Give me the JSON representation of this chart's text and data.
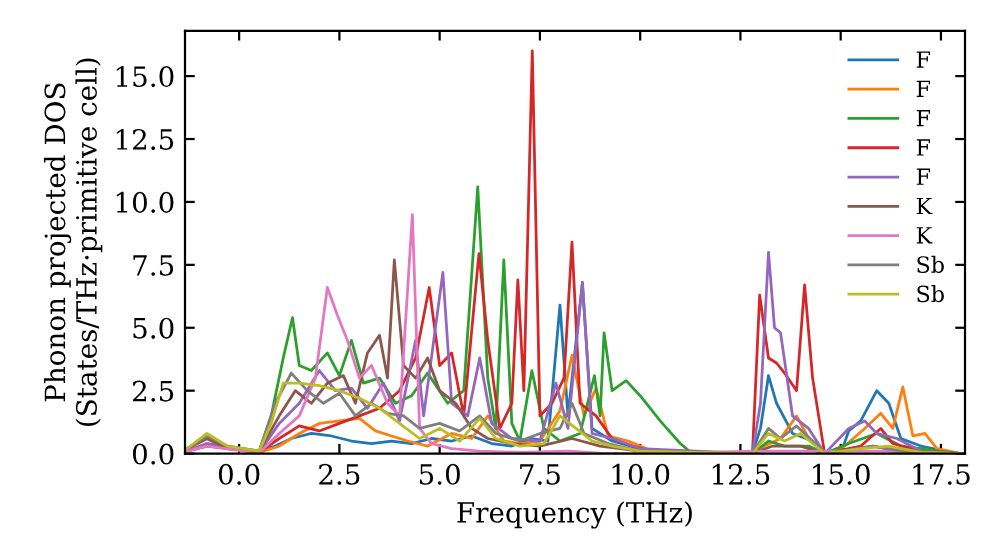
{
  "chart_data": {
    "type": "line",
    "xlabel": "Frequency (THz)",
    "ylabel": "Phonon projected DOS\n(States/THz·primitive cell)",
    "xlim": [
      -1.35,
      18.1
    ],
    "ylim": [
      0,
      16.8
    ],
    "xticks": [
      {
        "value": 0,
        "label": "0.0"
      },
      {
        "value": 2.5,
        "label": "2.5"
      },
      {
        "value": 5,
        "label": "5.0"
      },
      {
        "value": 7.5,
        "label": "7.5"
      },
      {
        "value": 10,
        "label": "10.0"
      },
      {
        "value": 12.5,
        "label": "12.5"
      },
      {
        "value": 15,
        "label": "15.0"
      },
      {
        "value": 17.5,
        "label": "17.5"
      }
    ],
    "yticks": [
      {
        "value": 0,
        "label": "0.0"
      },
      {
        "value": 2.5,
        "label": "2.5"
      },
      {
        "value": 5,
        "label": "5.0"
      },
      {
        "value": 7.5,
        "label": "7.5"
      },
      {
        "value": 10,
        "label": "10.0"
      },
      {
        "value": 12.5,
        "label": "12.5"
      },
      {
        "value": 15,
        "label": "15.0"
      }
    ],
    "grid": false,
    "legend": "top right",
    "marker": "none",
    "line_style": "solid",
    "series": [
      {
        "name": "F",
        "color": "#1f77b4",
        "x": [
          -0.3,
          0.5,
          0.9,
          1.3,
          1.8,
          2.3,
          2.8,
          3.3,
          3.8,
          4.3,
          4.8,
          5.3,
          5.8,
          6.3,
          6.8,
          7.3,
          7.7,
          8.0,
          8.2,
          8.56,
          8.8,
          9.3,
          10,
          10.5,
          12.8,
          13.0,
          13.2,
          13.4,
          13.8,
          14.3,
          14.6,
          15.0,
          15.2,
          15.5,
          15.9,
          16.2,
          16.5,
          17.0,
          17.6,
          18.0
        ],
        "values": [
          0.3,
          0.1,
          0.3,
          0.6,
          0.8,
          0.7,
          0.5,
          0.4,
          0.5,
          0.4,
          0.6,
          0.5,
          0.7,
          0.4,
          0.3,
          0.6,
          0.5,
          5.9,
          1.5,
          6.8,
          1.0,
          0.5,
          0.2,
          0,
          0,
          1.0,
          3.1,
          2.0,
          0.8,
          0.5,
          0,
          0,
          0.9,
          1.3,
          2.5,
          2.0,
          0.6,
          0.3,
          0.1,
          0
        ]
      },
      {
        "name": "F",
        "color": "#ff7f0e",
        "x": [
          -1.3,
          -0.8,
          0.5,
          1.0,
          1.5,
          2.0,
          2.5,
          3.0,
          3.4,
          3.8,
          4.2,
          4.7,
          5.3,
          5.8,
          6.2,
          6.6,
          7.0,
          7.5,
          8.0,
          8.3,
          8.6,
          8.9,
          9.2,
          9.7,
          10.3,
          12.8,
          13.1,
          13.5,
          13.9,
          14.2,
          14.6,
          15.1,
          15.6,
          16.0,
          16.3,
          16.55,
          16.8,
          17.1,
          17.4,
          18
        ],
        "values": [
          0.1,
          0.4,
          0.05,
          0.3,
          0.8,
          1.2,
          1.3,
          1.4,
          0.9,
          0.7,
          0.5,
          0.3,
          0.8,
          0.6,
          1.5,
          0.5,
          0.4,
          0.5,
          1.7,
          3.9,
          1.5,
          2.6,
          0.7,
          0.5,
          0.1,
          0,
          0.3,
          0.6,
          1.5,
          0.6,
          0,
          0.3,
          1.0,
          1.6,
          1.0,
          2.65,
          0.7,
          0.8,
          0.2,
          0
        ]
      },
      {
        "name": "F",
        "color": "#2ca02c",
        "x": [
          -1.3,
          -0.8,
          -0.3,
          0.5,
          0.8,
          1.1,
          1.33,
          1.5,
          1.8,
          2.2,
          2.5,
          2.8,
          3.1,
          3.5,
          3.9,
          4.3,
          4.7,
          5.2,
          5.6,
          5.95,
          6.2,
          6.4,
          6.6,
          6.8,
          7.0,
          7.3,
          7.6,
          8.0,
          8.5,
          8.86,
          9.0,
          9.1,
          9.3,
          9.65,
          10.0,
          10.5,
          11.0,
          11.3,
          12.8,
          13.2,
          13.6,
          14.2,
          14.6,
          15.2,
          15.9,
          16.5,
          18
        ],
        "values": [
          0.2,
          0.6,
          0.2,
          0.1,
          1.5,
          3.8,
          5.4,
          3.5,
          3.3,
          4.0,
          3.1,
          4.5,
          2.8,
          3.0,
          2.0,
          2.3,
          3.2,
          2.0,
          2.5,
          10.6,
          3.0,
          1.0,
          7.7,
          1.2,
          0.5,
          3.3,
          1.0,
          0.5,
          0.8,
          3.1,
          1.5,
          4.8,
          2.5,
          2.9,
          2.3,
          1.3,
          0.4,
          0,
          0,
          0.5,
          0.3,
          0.3,
          0,
          0.4,
          0.8,
          0.3,
          0
        ]
      },
      {
        "name": "F",
        "color": "#d62728",
        "x": [
          -1.3,
          -0.8,
          0.5,
          1.0,
          1.5,
          2.0,
          2.5,
          3.0,
          3.5,
          4.0,
          4.4,
          4.74,
          5.0,
          5.3,
          5.6,
          5.98,
          6.2,
          6.5,
          6.8,
          6.95,
          7.1,
          7.31,
          7.5,
          7.8,
          8.1,
          8.3,
          8.5,
          8.9,
          9.3,
          9.8,
          10.3,
          12.8,
          12.98,
          13.2,
          13.4,
          13.6,
          13.9,
          14.1,
          14.3,
          14.6,
          15.5,
          16.0,
          16.3,
          17,
          18
        ],
        "values": [
          0.1,
          0.3,
          0.05,
          0.6,
          1.1,
          0.9,
          1.2,
          1.5,
          1.8,
          2.5,
          3.8,
          6.6,
          3.5,
          4.0,
          1.5,
          7.95,
          4.5,
          1.0,
          2.0,
          6.9,
          2.5,
          16.0,
          1.5,
          2.0,
          3.0,
          8.4,
          2.0,
          1.5,
          0.6,
          0.3,
          0.1,
          0,
          6.3,
          3.8,
          3.6,
          3.2,
          2.5,
          6.7,
          3.0,
          0,
          0.3,
          1.0,
          0.4,
          0.1,
          0
        ]
      },
      {
        "name": "F",
        "color": "#9467bd",
        "x": [
          -1.3,
          -0.8,
          0.5,
          1.0,
          1.5,
          2.0,
          2.4,
          2.8,
          3.2,
          3.6,
          4.0,
          4.4,
          4.6,
          5.08,
          5.3,
          5.7,
          6.0,
          6.3,
          6.8,
          7.5,
          7.9,
          8.2,
          8.56,
          8.8,
          9.3,
          10,
          12.8,
          13.0,
          13.2,
          13.35,
          13.5,
          13.8,
          14.2,
          14.6,
          15.2,
          15.6,
          15.9,
          16.4,
          17,
          18
        ],
        "values": [
          0.1,
          0.4,
          0.05,
          1.2,
          2.0,
          3.3,
          2.5,
          2.6,
          1.8,
          2.8,
          1.3,
          4.5,
          1.5,
          7.2,
          2.0,
          1.5,
          3.8,
          1.2,
          0.6,
          0.5,
          2.8,
          1.0,
          6.8,
          0.8,
          0.6,
          0.2,
          0,
          2.0,
          8.0,
          5.0,
          4.8,
          1.5,
          1.0,
          0,
          1.0,
          1.3,
          0.8,
          0.6,
          0.1,
          0
        ]
      },
      {
        "name": "K",
        "color": "#8c564b",
        "x": [
          -1.3,
          -0.8,
          -0.3,
          0.5,
          1.0,
          1.4,
          1.8,
          2.2,
          2.6,
          2.9,
          3.2,
          3.5,
          3.7,
          3.87,
          4.1,
          4.4,
          4.7,
          5.0,
          5.4,
          5.8,
          6.2,
          6.8,
          7.5,
          8.3,
          9,
          10,
          12.8,
          13.3,
          14,
          14.6,
          15.8,
          16.5,
          18
        ],
        "values": [
          0.2,
          0.6,
          0.2,
          0.1,
          1.5,
          2.5,
          2.0,
          2.8,
          3.1,
          2.0,
          4.0,
          4.7,
          3.0,
          7.7,
          3.5,
          3.0,
          3.8,
          2.5,
          2.0,
          1.0,
          0.6,
          0.4,
          0.3,
          0.6,
          0.3,
          0.1,
          0,
          0.3,
          0.3,
          0,
          0.3,
          0.1,
          0
        ]
      },
      {
        "name": "K",
        "color": "#e377c2",
        "x": [
          -1.3,
          -0.8,
          0.5,
          1.0,
          1.5,
          1.9,
          2.2,
          2.45,
          2.7,
          3.0,
          3.3,
          3.7,
          4.0,
          4.32,
          4.5,
          4.8,
          5.3,
          6.0,
          7,
          8.2,
          9,
          10,
          13,
          14,
          16,
          18
        ],
        "values": [
          0.1,
          0.3,
          0.02,
          0.8,
          1.5,
          3.0,
          6.6,
          5.5,
          4.5,
          3.0,
          3.5,
          2.0,
          1.5,
          9.5,
          1.0,
          0.4,
          0.2,
          0.1,
          0.05,
          0.1,
          0.02,
          0,
          0.1,
          0.1,
          0.1,
          0
        ]
      },
      {
        "name": "Sb",
        "color": "#7f7f7f",
        "x": [
          -1.3,
          -0.8,
          -0.3,
          0.5,
          0.9,
          1.3,
          1.7,
          2.1,
          2.5,
          2.9,
          3.3,
          3.7,
          4.1,
          4.5,
          5.0,
          5.5,
          6.0,
          6.4,
          7.0,
          7.5,
          8.0,
          8.3,
          8.6,
          9.2,
          10,
          12.8,
          13.2,
          13.5,
          13.9,
          14.3,
          14.6,
          15.8,
          16.5,
          18
        ],
        "values": [
          0.2,
          0.7,
          0.3,
          0.1,
          2.0,
          3.2,
          2.5,
          2.0,
          2.4,
          1.5,
          2.0,
          1.6,
          1.5,
          1.0,
          1.2,
          0.9,
          1.5,
          0.8,
          0.5,
          0.8,
          1.0,
          2.0,
          0.8,
          0.4,
          0.1,
          0,
          1.0,
          0.6,
          1.1,
          0.5,
          0,
          0.3,
          0.1,
          0
        ]
      },
      {
        "name": "Sb",
        "color": "#bcbd22",
        "x": [
          -1.3,
          -0.8,
          -0.3,
          0.5,
          0.8,
          1.1,
          1.5,
          2.0,
          2.5,
          3.0,
          3.5,
          4.0,
          4.5,
          5.0,
          5.5,
          6.0,
          6.4,
          7.0,
          7.6,
          8.0,
          8.4,
          8.8,
          9.3,
          10,
          12.8,
          13.2,
          13.6,
          14,
          14.3,
          14.6,
          15.5,
          16.2,
          17,
          18
        ],
        "values": [
          0.2,
          0.8,
          0.3,
          0.1,
          1.2,
          2.8,
          2.8,
          2.7,
          2.5,
          2.2,
          1.8,
          1.2,
          0.6,
          1.0,
          0.5,
          1.4,
          0.6,
          0.3,
          0.4,
          1.5,
          1.0,
          0.5,
          0.3,
          0.1,
          0,
          0.8,
          0.5,
          0.8,
          0.4,
          0,
          0.2,
          0.3,
          0.05,
          0
        ]
      }
    ]
  }
}
